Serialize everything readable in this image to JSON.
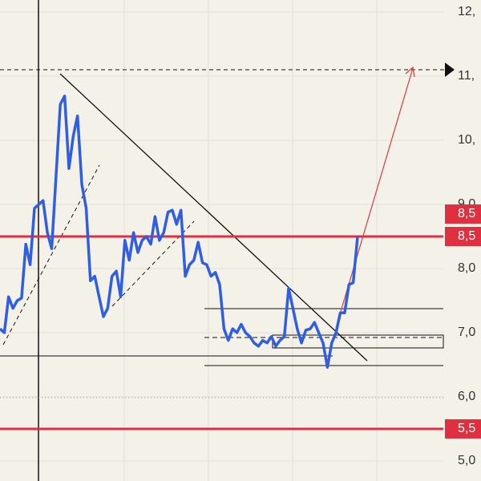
{
  "chart_data": {
    "type": "line",
    "series": [
      {
        "color": "#2f5fe0",
        "values": [
          7.06,
          7.0,
          7.56,
          7.38,
          7.5,
          7.54,
          8.38,
          8.06,
          8.94,
          9.0,
          9.06,
          8.56,
          8.31,
          9.44,
          10.56,
          10.69,
          9.56,
          10.06,
          10.38,
          9.31,
          8.94,
          7.81,
          7.88,
          7.56,
          7.25,
          7.38,
          7.88,
          7.96,
          7.56,
          8.44,
          8.13,
          8.56,
          8.25,
          8.44,
          8.5,
          8.38,
          8.81,
          8.44,
          8.56,
          8.88,
          8.91,
          8.69,
          8.91,
          7.88,
          8.06,
          8.13,
          8.41,
          8.09,
          8.06,
          7.88,
          7.94,
          7.75,
          7.06,
          6.88,
          7.06,
          7.0,
          7.13,
          7.0,
          6.94,
          6.84,
          6.79,
          6.88,
          6.84,
          6.94,
          6.79,
          6.88,
          6.94,
          7.69,
          7.38,
          7.06,
          6.84,
          7.04,
          7.06,
          7.16,
          7.0,
          6.84,
          6.46,
          6.84,
          7.0,
          7.31,
          7.31,
          7.75,
          7.78,
          8.5
        ]
      }
    ],
    "ylim": [
      4.6875,
      12.1875
    ],
    "yticks": [
      {
        "value": 12,
        "label": "12,"
      },
      {
        "value": 11,
        "label": "11,"
      },
      {
        "value": 10,
        "label": "10,"
      },
      {
        "value": 9,
        "label": "9,0"
      },
      {
        "value": 8,
        "label": "8,0"
      },
      {
        "value": 7,
        "label": "7,0"
      },
      {
        "value": 6,
        "label": "6,0"
      },
      {
        "value": 5,
        "label": "5,0"
      }
    ],
    "price_tags": [
      {
        "value": 8.5,
        "label": "8,5",
        "color": "#e0303f"
      },
      {
        "value": 8.5,
        "label": "8,5",
        "color": "#e0303f"
      },
      {
        "value": 5.5,
        "label": "5,5",
        "color": "#e0303f"
      }
    ],
    "grid": true
  }
}
